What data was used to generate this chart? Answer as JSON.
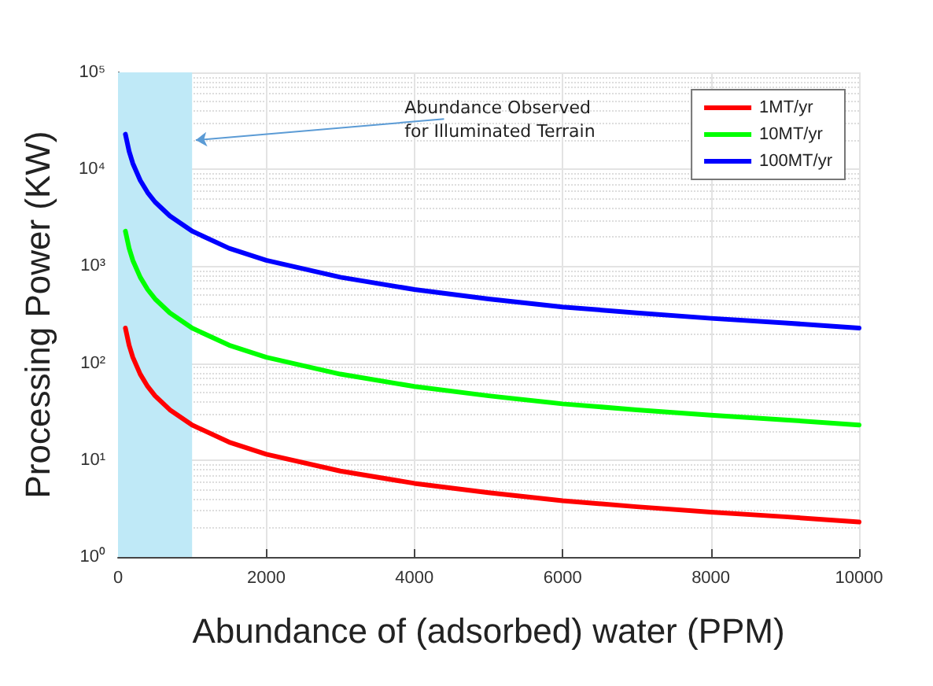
{
  "chart_data": {
    "type": "line",
    "xlabel": "Abundance of (adsorbed) water (PPM)",
    "ylabel": "Processing Power (KW)",
    "x": [
      100,
      150,
      200,
      300,
      400,
      500,
      700,
      1000,
      1500,
      2000,
      3000,
      4000,
      5000,
      6000,
      7000,
      8000,
      9000,
      10000
    ],
    "series": [
      {
        "name": "1MT/yr",
        "color": "#ff0000",
        "values": [
          230,
          153,
          115,
          77,
          57.5,
          46,
          33,
          23,
          15.3,
          11.5,
          7.7,
          5.75,
          4.6,
          3.8,
          3.3,
          2.9,
          2.6,
          2.3
        ]
      },
      {
        "name": "10MT/yr",
        "color": "#00ff00",
        "values": [
          2300,
          1530,
          1150,
          770,
          575,
          460,
          330,
          230,
          153,
          115,
          77,
          57.5,
          46,
          38,
          33,
          29,
          26,
          23
        ]
      },
      {
        "name": "100MT/yr",
        "color": "#0000ff",
        "values": [
          23000,
          15300,
          11500,
          7700,
          5750,
          4600,
          3300,
          2300,
          1530,
          1150,
          770,
          575,
          460,
          380,
          330,
          290,
          260,
          230
        ]
      }
    ],
    "xlim": [
      0,
      10000
    ],
    "xticks": [
      0,
      2000,
      4000,
      6000,
      8000,
      10000
    ],
    "ylim": [
      1,
      100000
    ],
    "yticks": [
      {
        "value": 1,
        "label": "10⁰"
      },
      {
        "value": 10,
        "label": "10¹"
      },
      {
        "value": 100,
        "label": "10²"
      },
      {
        "value": 1000,
        "label": "10³"
      },
      {
        "value": 10000,
        "label": "10⁴"
      },
      {
        "value": 100000,
        "label": "10⁵"
      }
    ],
    "log": "y",
    "grid": true,
    "legend": "top right",
    "marker": "none",
    "line_style": "solid",
    "bands": [
      {
        "axis": "x",
        "from": 0,
        "to": 1000,
        "color": "#bfe9f7",
        "label": "Abundance Observed\nfor Illuminated Terrain"
      }
    ]
  }
}
